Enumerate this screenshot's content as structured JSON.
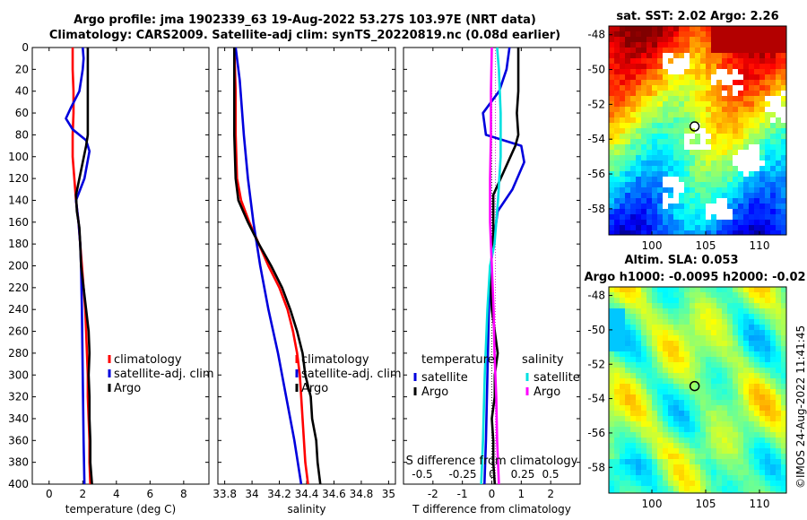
{
  "header": {
    "title_line1": "Argo profile: jma 1902339_63 19-Aug-2022 53.27S 103.97E (NRT data)",
    "title_line2": "Climatology: CARS2009. Satellite-adj clim: synTS_20220819.nc (0.08d earlier)"
  },
  "stamp": "©IMOS 24-Aug-2022 11:41:45",
  "colors": {
    "climatology": "#ff0000",
    "satellite": "#0000dd",
    "argo": "#000000",
    "temp_sat_diff": "#0000dd",
    "sal_sat_diff": "#00e0e0",
    "sal_argo_diff": "#ff00ff"
  },
  "chart_data": [
    {
      "type": "line",
      "title": "",
      "xlabel": "temperature (deg C)",
      "ylabel": "",
      "xlim": [
        -1,
        9.5
      ],
      "ylim": [
        400,
        0
      ],
      "xticks": [
        "0",
        "2",
        "4",
        "6",
        "8"
      ],
      "yticks": [
        "0",
        "20",
        "40",
        "60",
        "80",
        "100",
        "120",
        "140",
        "160",
        "180",
        "200",
        "220",
        "240",
        "260",
        "280",
        "300",
        "320",
        "340",
        "360",
        "380",
        "400"
      ],
      "legend": [
        "climatology",
        "satellite-adj. clim",
        "Argo"
      ],
      "series": [
        {
          "name": "climatology",
          "color_key": "climatology",
          "points": [
            [
              1.4,
              0
            ],
            [
              1.4,
              20
            ],
            [
              1.45,
              40
            ],
            [
              1.45,
              60
            ],
            [
              1.4,
              80
            ],
            [
              1.4,
              100
            ],
            [
              1.5,
              120
            ],
            [
              1.6,
              140
            ],
            [
              1.75,
              160
            ],
            [
              1.85,
              180
            ],
            [
              1.95,
              200
            ],
            [
              2.05,
              220
            ],
            [
              2.15,
              240
            ],
            [
              2.2,
              260
            ],
            [
              2.25,
              280
            ],
            [
              2.3,
              300
            ],
            [
              2.3,
              320
            ],
            [
              2.35,
              340
            ],
            [
              2.4,
              360
            ],
            [
              2.4,
              380
            ],
            [
              2.45,
              400
            ]
          ]
        },
        {
          "name": "satellite-adj. clim",
          "color_key": "satellite",
          "points": [
            [
              2.0,
              0
            ],
            [
              2.05,
              10
            ],
            [
              2.0,
              20
            ],
            [
              1.8,
              40
            ],
            [
              1.3,
              55
            ],
            [
              1.0,
              65
            ],
            [
              1.4,
              75
            ],
            [
              2.2,
              85
            ],
            [
              2.4,
              95
            ],
            [
              2.1,
              120
            ],
            [
              1.6,
              140
            ],
            [
              1.75,
              160
            ],
            [
              1.85,
              180
            ],
            [
              1.9,
              200
            ],
            [
              1.95,
              240
            ],
            [
              2.0,
              300
            ],
            [
              2.05,
              360
            ],
            [
              2.1,
              400
            ]
          ]
        },
        {
          "name": "Argo",
          "color_key": "argo",
          "points": [
            [
              2.3,
              0
            ],
            [
              2.3,
              20
            ],
            [
              2.3,
              40
            ],
            [
              2.3,
              60
            ],
            [
              2.3,
              80
            ],
            [
              2.2,
              90
            ],
            [
              2.0,
              105
            ],
            [
              1.8,
              120
            ],
            [
              1.6,
              135
            ],
            [
              1.65,
              150
            ],
            [
              1.8,
              165
            ],
            [
              1.85,
              180
            ],
            [
              1.9,
              200
            ],
            [
              2.05,
              220
            ],
            [
              2.2,
              240
            ],
            [
              2.35,
              260
            ],
            [
              2.4,
              280
            ],
            [
              2.35,
              300
            ],
            [
              2.4,
              320
            ],
            [
              2.4,
              340
            ],
            [
              2.45,
              360
            ],
            [
              2.45,
              380
            ],
            [
              2.55,
              400
            ]
          ]
        }
      ]
    },
    {
      "type": "line",
      "title": "",
      "xlabel": "salinity",
      "ylabel": "",
      "xlim": [
        33.75,
        35.05
      ],
      "ylim": [
        400,
        0
      ],
      "xticks": [
        "33.8",
        "34",
        "34.2",
        "34.4",
        "34.6",
        "34.8",
        "35"
      ],
      "legend": [
        "climatology",
        "satellite-adj. clim",
        "Argo"
      ],
      "series": [
        {
          "name": "climatology",
          "color_key": "climatology",
          "points": [
            [
              33.87,
              0
            ],
            [
              33.88,
              40
            ],
            [
              33.88,
              80
            ],
            [
              33.89,
              120
            ],
            [
              33.92,
              140
            ],
            [
              33.98,
              160
            ],
            [
              34.05,
              180
            ],
            [
              34.12,
              200
            ],
            [
              34.2,
              220
            ],
            [
              34.26,
              240
            ],
            [
              34.3,
              260
            ],
            [
              34.33,
              280
            ],
            [
              34.35,
              300
            ],
            [
              34.37,
              340
            ],
            [
              34.39,
              380
            ],
            [
              34.41,
              400
            ]
          ]
        },
        {
          "name": "satellite-adj. clim",
          "color_key": "satellite",
          "points": [
            [
              33.88,
              0
            ],
            [
              33.91,
              30
            ],
            [
              33.94,
              80
            ],
            [
              33.97,
              120
            ],
            [
              34.01,
              160
            ],
            [
              34.06,
              200
            ],
            [
              34.12,
              240
            ],
            [
              34.19,
              280
            ],
            [
              34.25,
              320
            ],
            [
              34.31,
              360
            ],
            [
              34.36,
              400
            ]
          ]
        },
        {
          "name": "Argo",
          "color_key": "argo",
          "points": [
            [
              33.87,
              0
            ],
            [
              33.87,
              40
            ],
            [
              33.87,
              80
            ],
            [
              33.88,
              120
            ],
            [
              33.9,
              140
            ],
            [
              33.97,
              160
            ],
            [
              34.05,
              180
            ],
            [
              34.14,
              200
            ],
            [
              34.22,
              220
            ],
            [
              34.28,
              240
            ],
            [
              34.33,
              260
            ],
            [
              34.37,
              280
            ],
            [
              34.39,
              300
            ],
            [
              34.43,
              320
            ],
            [
              34.44,
              340
            ],
            [
              34.47,
              360
            ],
            [
              34.48,
              380
            ],
            [
              34.5,
              400
            ]
          ]
        }
      ]
    },
    {
      "type": "line",
      "title": "",
      "xlabel": "T difference from climatology",
      "ylabel": "",
      "xlim": [
        -3,
        3
      ],
      "ylim": [
        400,
        0
      ],
      "xticks": [
        "-2",
        "-1",
        "0",
        "1",
        "2"
      ],
      "secondary_xlabel": "S difference from climatology",
      "secondary_xticks": [
        "-0.5",
        "-0.25",
        "0",
        "0.25",
        "0.5"
      ],
      "legend_groups": [
        {
          "heading": "temperature",
          "items": [
            "satellite",
            "Argo"
          ]
        },
        {
          "heading": "salinity",
          "items": [
            "satellite",
            "Argo"
          ]
        }
      ],
      "series": [
        {
          "name": "temperature satellite",
          "color_key": "temp_sat_diff",
          "points": [
            [
              0.6,
              0
            ],
            [
              0.5,
              20
            ],
            [
              0.25,
              40
            ],
            [
              -0.3,
              60
            ],
            [
              -0.2,
              80
            ],
            [
              1.0,
              90
            ],
            [
              1.1,
              105
            ],
            [
              0.7,
              130
            ],
            [
              0.2,
              150
            ],
            [
              0.1,
              170
            ],
            [
              0.0,
              190
            ],
            [
              -0.05,
              210
            ],
            [
              -0.1,
              240
            ],
            [
              -0.15,
              300
            ],
            [
              -0.2,
              360
            ],
            [
              -0.25,
              400
            ]
          ]
        },
        {
          "name": "temperature Argo",
          "color_key": "argo",
          "points": [
            [
              0.9,
              0
            ],
            [
              0.9,
              20
            ],
            [
              0.9,
              40
            ],
            [
              0.85,
              60
            ],
            [
              0.9,
              80
            ],
            [
              0.8,
              90
            ],
            [
              0.55,
              105
            ],
            [
              0.3,
              120
            ],
            [
              0.05,
              135
            ],
            [
              0.05,
              150
            ],
            [
              0.05,
              170
            ],
            [
              0.0,
              190
            ],
            [
              -0.05,
              210
            ],
            [
              0.0,
              240
            ],
            [
              0.1,
              260
            ],
            [
              0.2,
              280
            ],
            [
              0.1,
              300
            ],
            [
              0.1,
              320
            ],
            [
              0.0,
              340
            ],
            [
              0.05,
              360
            ],
            [
              0.05,
              380
            ],
            [
              0.1,
              400
            ]
          ]
        },
        {
          "name": "salinity satellite",
          "color_key": "sal_sat_diff",
          "points": [
            [
              0.06,
              0
            ],
            [
              0.08,
              20
            ],
            [
              0.1,
              60
            ],
            [
              0.1,
              100
            ],
            [
              0.07,
              140
            ],
            [
              0.03,
              180
            ],
            [
              -0.02,
              200
            ],
            [
              -0.05,
              240
            ],
            [
              -0.08,
              300
            ],
            [
              -0.1,
              360
            ],
            [
              -0.12,
              400
            ]
          ]
        },
        {
          "name": "salinity Argo",
          "color_key": "sal_argo_diff",
          "points": [
            [
              0.0,
              0
            ],
            [
              -0.01,
              40
            ],
            [
              -0.01,
              80
            ],
            [
              -0.02,
              120
            ],
            [
              -0.02,
              160
            ],
            [
              0.0,
              200
            ],
            [
              0.02,
              240
            ],
            [
              0.03,
              280
            ],
            [
              0.05,
              320
            ],
            [
              0.06,
              360
            ],
            [
              0.08,
              400
            ]
          ]
        }
      ]
    },
    {
      "type": "heatmap",
      "title": "sat. SST: 2.02 Argo: 2.26",
      "xlim": [
        96,
        112.5
      ],
      "ylim": [
        -59.5,
        -47.5
      ],
      "xticks": [
        "100",
        "105",
        "110"
      ],
      "yticks": [
        "-48",
        "-50",
        "-52",
        "-54",
        "-56",
        "-58"
      ],
      "marker": {
        "lon": 103.97,
        "lat": -53.27
      },
      "value_range": [
        -1,
        6
      ]
    },
    {
      "type": "heatmap",
      "title": "Altim. SLA: 0.053",
      "subtitle": "Argo h1000: -0.0095 h2000: -0.02",
      "xlim": [
        96,
        112.5
      ],
      "ylim": [
        -59.5,
        -47.5
      ],
      "xticks": [
        "100",
        "105",
        "110"
      ],
      "yticks": [
        "-48",
        "-50",
        "-52",
        "-54",
        "-56",
        "-58"
      ],
      "marker": {
        "lon": 103.97,
        "lat": -53.27
      },
      "value_range": [
        -0.3,
        0.3
      ]
    }
  ]
}
